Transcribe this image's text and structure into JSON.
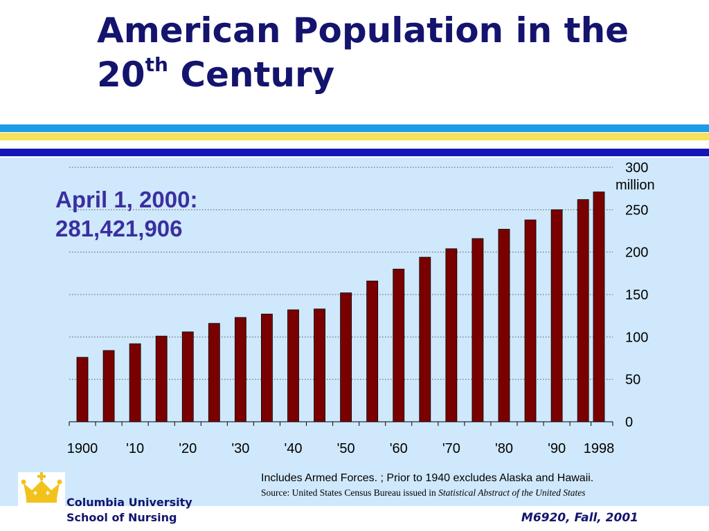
{
  "slide": {
    "title_main": "American Population in the 20",
    "title_sup": "th",
    "title_end": " Century",
    "callout_line1": "April 1, 2000:",
    "callout_line2": "281,421,906",
    "note_line1": "Includes Armed Forces. ; Prior to 1940 excludes Alaska and Hawaii.",
    "note_line2_prefix": "Source: United States Census Bureau issued in ",
    "note_line2_italic": "Statistical Abstract of the United States",
    "org_line1": "Columbia University",
    "org_line2": "School of Nursing",
    "course": "M6920, Fall, 2001"
  },
  "colors": {
    "title": "#14146e",
    "bar": "#7a0000",
    "plot_background": "#cfe8fb",
    "callout": "#3a2fa0",
    "stripe_light_blue": "#1e9be8",
    "stripe_yellow": "#f6e15a",
    "stripe_dark_blue": "#1616b8",
    "logo_gold": "#f2c21c"
  },
  "logo": {
    "icon": "crown-icon"
  },
  "chart_data": {
    "type": "bar",
    "x": [
      1900,
      1905,
      1910,
      1915,
      1920,
      1925,
      1930,
      1935,
      1940,
      1945,
      1950,
      1955,
      1960,
      1965,
      1970,
      1975,
      1980,
      1985,
      1990,
      1995,
      1998
    ],
    "values": [
      76,
      84,
      92,
      101,
      106,
      116,
      123,
      127,
      132,
      133,
      152,
      166,
      180,
      194,
      204,
      216,
      227,
      238,
      250,
      262,
      271
    ],
    "x_tick_labels": [
      "1900",
      "'10",
      "'20",
      "'30",
      "'40",
      "'50",
      "'60",
      "'70",
      "'80",
      "'90",
      "1998"
    ],
    "x_tick_values": [
      1900,
      1910,
      1920,
      1930,
      1940,
      1950,
      1960,
      1970,
      1980,
      1990,
      1998
    ],
    "y_ticks": [
      0,
      50,
      100,
      150,
      200,
      250,
      300
    ],
    "y_unit_label": "million",
    "ylim": [
      0,
      300
    ],
    "y_axis_side": "right",
    "grid": "horizontal-dotted"
  }
}
